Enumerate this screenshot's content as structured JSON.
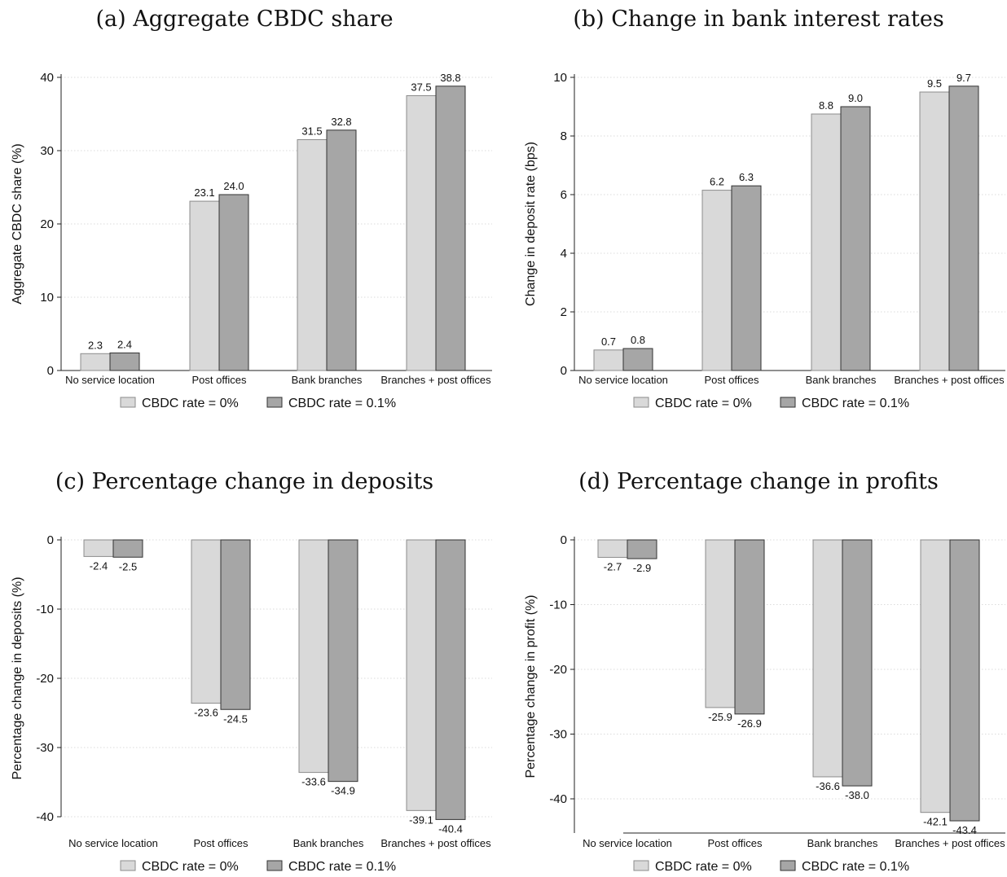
{
  "chart_data": [
    {
      "type": "bar",
      "title": "(a) Aggregate CBDC share",
      "ylabel": "Aggregate CBDC share (%)",
      "xlabel": "",
      "categories": [
        "No service location",
        "Post offices",
        "Bank branches",
        "Branches + post offices"
      ],
      "series": [
        {
          "name": "CBDC rate = 0%",
          "values": [
            2.3,
            23.1,
            31.5,
            37.5
          ],
          "labels": [
            "2.3",
            "23.1",
            "31.5",
            "37.5"
          ],
          "color": "#d9d9d9"
        },
        {
          "name": "CBDC rate = 0.1%",
          "values": [
            2.4,
            24.0,
            32.8,
            38.8
          ],
          "labels": [
            "2.4",
            "24.0",
            "32.8",
            "38.8"
          ],
          "color": "#a6a6a6"
        }
      ],
      "ylim": [
        0,
        40
      ],
      "yticks": [
        "0",
        "10",
        "20",
        "30",
        "40"
      ],
      "grid": true,
      "legend_position": "bottom"
    },
    {
      "type": "bar",
      "title": "(b) Change in bank interest rates",
      "ylabel": "Change in deposit rate (bps)",
      "xlabel": "",
      "categories": [
        "No service location",
        "Post offices",
        "Bank branches",
        "Branches + post offices"
      ],
      "series": [
        {
          "name": "CBDC rate = 0%",
          "values": [
            0.7,
            6.15,
            8.75,
            9.5
          ],
          "labels": [
            "0.7",
            "6.2",
            "8.8",
            "9.5"
          ],
          "color": "#d9d9d9"
        },
        {
          "name": "CBDC rate = 0.1%",
          "values": [
            0.75,
            6.3,
            9.0,
            9.7
          ],
          "labels": [
            "0.8",
            "6.3",
            "9.0",
            "9.7"
          ],
          "color": "#a6a6a6"
        }
      ],
      "ylim": [
        0,
        10
      ],
      "yticks": [
        "0",
        "2",
        "4",
        "6",
        "8",
        "10"
      ],
      "grid": true,
      "legend_position": "bottom"
    },
    {
      "type": "bar",
      "title": "(c) Percentage change in deposits",
      "ylabel": "Percentage change in deposits (%)",
      "xlabel": "",
      "categories": [
        "No service location",
        "Post offices",
        "Bank branches",
        "Branches + post offices"
      ],
      "series": [
        {
          "name": "CBDC rate = 0%",
          "values": [
            -2.4,
            -23.6,
            -33.6,
            -39.1
          ],
          "labels": [
            "-2.4",
            "-23.6",
            "-33.6",
            "-39.1"
          ],
          "color": "#d9d9d9"
        },
        {
          "name": "CBDC rate = 0.1%",
          "values": [
            -2.5,
            -24.5,
            -34.9,
            -40.4
          ],
          "labels": [
            "-2.5",
            "-24.5",
            "-34.9",
            "-40.4"
          ],
          "color": "#a6a6a6"
        }
      ],
      "ylim": [
        -40,
        0
      ],
      "yticks": [
        "-40",
        "-30",
        "-20",
        "-10",
        "0"
      ],
      "grid": true,
      "legend_position": "bottom"
    },
    {
      "type": "bar",
      "title": "(d) Percentage change in profits",
      "ylabel": "Percentage change in profit (%)",
      "xlabel": "",
      "categories": [
        "No service location",
        "Post offices",
        "Bank branches",
        "Branches + post offices"
      ],
      "series": [
        {
          "name": "CBDC rate = 0%",
          "values": [
            -2.7,
            -25.9,
            -36.6,
            -42.1
          ],
          "labels": [
            "-2.7",
            "-25.9",
            "-36.6",
            "-42.1"
          ],
          "color": "#d9d9d9"
        },
        {
          "name": "CBDC rate = 0.1%",
          "values": [
            -2.9,
            -26.9,
            -38.0,
            -43.4
          ],
          "labels": [
            "-2.9",
            "-26.9",
            "-38.0",
            "-43.4"
          ],
          "color": "#a6a6a6"
        }
      ],
      "ylim": [
        -40,
        0
      ],
      "yticks": [
        "-40",
        "-30",
        "-20",
        "-10",
        "0"
      ],
      "grid": true,
      "legend_position": "bottom"
    }
  ]
}
